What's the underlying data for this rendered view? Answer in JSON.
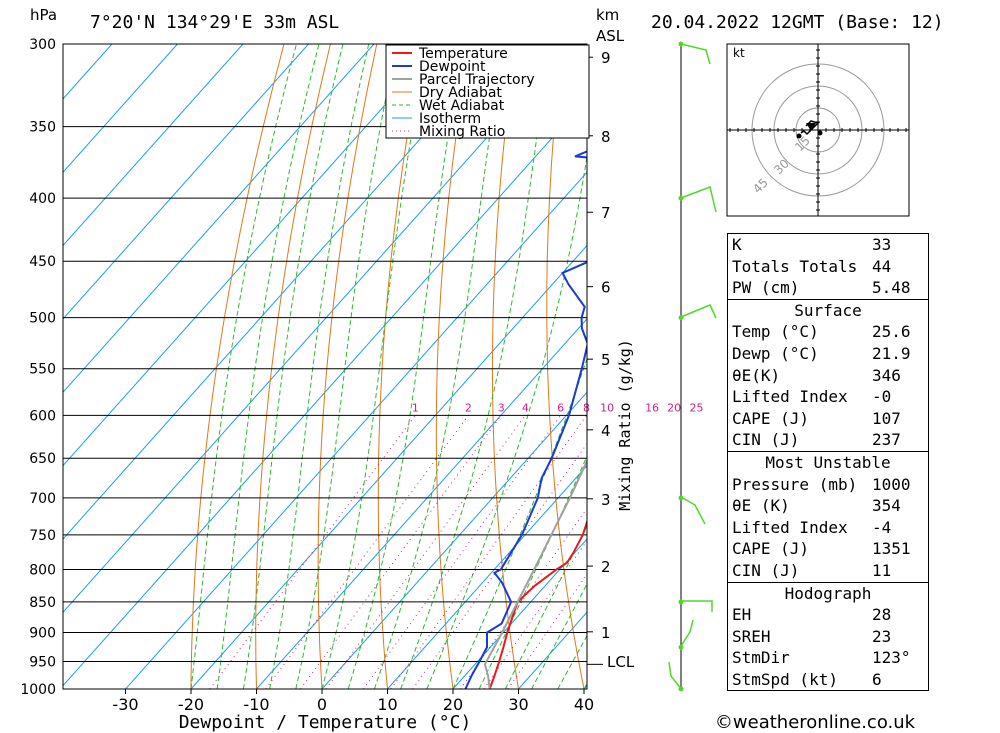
{
  "header": {
    "hpa_label": "hPa",
    "location": "7°20'N  134°29'E  33m  ASL",
    "km_label": "km",
    "asl_label": "ASL",
    "datetime": "20.04.2022  12GMT  (Base: 12)"
  },
  "chart_data": {
    "type": "skew-t",
    "xlabel": "Dewpoint / Temperature (°C)",
    "ylabel": "hPa",
    "mixing_ratio_axis_label": "Mixing Ratio (g/kg)",
    "x_ticks": [
      -30,
      -20,
      -10,
      0,
      10,
      20,
      30,
      40
    ],
    "pressure_levels": [
      300,
      350,
      400,
      450,
      500,
      550,
      600,
      650,
      700,
      750,
      800,
      850,
      900,
      950,
      1000
    ],
    "km_ticks": [
      1,
      2,
      3,
      4,
      5,
      6,
      7,
      8,
      9
    ],
    "lcl_label": "LCL",
    "lcl_pressure": 955,
    "mixing_ratio_labels": [
      "1",
      "2",
      "3",
      "4",
      "6",
      "8",
      "10",
      "16",
      "20",
      "25"
    ],
    "legend": [
      "Temperature",
      "Dewpoint",
      "Parcel Trajectory",
      "Dry Adiabat",
      "Wet Adiabat",
      "Isotherm",
      "Mixing Ratio"
    ],
    "series": [
      {
        "name": "Temperature",
        "color": "#e8191f",
        "points": [
          [
            1000,
            25.6
          ],
          [
            975,
            24.5
          ],
          [
            950,
            23.3
          ],
          [
            925,
            22.0
          ],
          [
            900,
            20.6
          ],
          [
            875,
            19.3
          ],
          [
            850,
            18.0
          ],
          [
            825,
            18.4
          ],
          [
            800,
            19.5
          ],
          [
            790,
            20.2
          ],
          [
            775,
            19.8
          ],
          [
            750,
            18.8
          ],
          [
            700,
            15.6
          ],
          [
            650,
            12.6
          ],
          [
            600,
            8.8
          ],
          [
            575,
            5.9
          ],
          [
            550,
            3.6
          ],
          [
            525,
            1.2
          ],
          [
            500,
            -1.2
          ],
          [
            475,
            -3.3
          ],
          [
            450,
            -6.0
          ],
          [
            425,
            -8.8
          ],
          [
            400,
            -12.2
          ],
          [
            375,
            -16.2
          ],
          [
            350,
            -21.3
          ],
          [
            325,
            -26.2
          ],
          [
            300,
            -31.2
          ]
        ]
      },
      {
        "name": "Dewpoint",
        "color": "#1a3ad4",
        "points": [
          [
            1000,
            21.9
          ],
          [
            975,
            21.0
          ],
          [
            950,
            20.3
          ],
          [
            925,
            19.5
          ],
          [
            900,
            17.5
          ],
          [
            885,
            18.5
          ],
          [
            850,
            17.0
          ],
          [
            820,
            13.0
          ],
          [
            805,
            10.5
          ],
          [
            800,
            11.0
          ],
          [
            750,
            9.5
          ],
          [
            700,
            6.9
          ],
          [
            675,
            4.8
          ],
          [
            650,
            3.6
          ],
          [
            600,
            0.4
          ],
          [
            550,
            -4.0
          ],
          [
            525,
            -6.5
          ],
          [
            510,
            -9.5
          ],
          [
            500,
            -11.0
          ],
          [
            490,
            -12.0
          ],
          [
            470,
            -17.5
          ],
          [
            460,
            -20.0
          ],
          [
            450,
            -17.5
          ],
          [
            440,
            -17.5
          ],
          [
            425,
            -16.2
          ],
          [
            410,
            -18.0
          ],
          [
            400,
            -21.5
          ],
          [
            395,
            -20.0
          ],
          [
            390,
            -24.0
          ],
          [
            383,
            -19.2
          ],
          [
            378,
            -28.0
          ],
          [
            375,
            -20.5
          ],
          [
            370,
            -34.0
          ],
          [
            350,
            -27.0
          ],
          [
            340,
            -24.0
          ],
          [
            325,
            -24.5
          ],
          [
            315,
            -30.0
          ],
          [
            305,
            -27.2
          ],
          [
            300,
            -26.2
          ]
        ]
      },
      {
        "name": "Parcel Trajectory",
        "color": "#a0a0a0",
        "points": [
          [
            1000,
            25.6
          ],
          [
            975,
            23.5
          ],
          [
            955,
            21.5
          ],
          [
            900,
            19.8
          ],
          [
            850,
            18.0
          ],
          [
            800,
            16.1
          ],
          [
            750,
            14.0
          ],
          [
            700,
            11.8
          ],
          [
            650,
            9.2
          ],
          [
            600,
            6.3
          ],
          [
            550,
            2.9
          ],
          [
            500,
            -1.2
          ],
          [
            450,
            -6.1
          ],
          [
            400,
            -12.0
          ],
          [
            350,
            -19.5
          ],
          [
            300,
            -28.6
          ]
        ]
      }
    ]
  },
  "hodograph": {
    "unit_label": "kt",
    "ring_labels": [
      "15",
      "30",
      "45"
    ]
  },
  "indices": {
    "k_label": "K",
    "k_value": "33",
    "tt_label": "Totals Totals",
    "tt_value": "44",
    "pw_label": "PW (cm)",
    "pw_value": "5.48"
  },
  "surface": {
    "title": "Surface",
    "temp_label": "Temp (°C)",
    "temp_value": "25.6",
    "dewp_label": "Dewp (°C)",
    "dewp_value": "21.9",
    "theta_label": "θE(K)",
    "theta_value": "346",
    "li_label": "Lifted Index",
    "li_value": "-0",
    "cape_label": "CAPE (J)",
    "cape_value": "107",
    "cin_label": "CIN (J)",
    "cin_value": "237"
  },
  "most_unstable": {
    "title": "Most Unstable",
    "pressure_label": "Pressure (mb)",
    "pressure_value": "1000",
    "theta_label": "θE (K)",
    "theta_value": "354",
    "li_label": "Lifted Index",
    "li_value": "-4",
    "cape_label": "CAPE (J)",
    "cape_value": "1351",
    "cin_label": "CIN (J)",
    "cin_value": "11"
  },
  "hodograph_params": {
    "title": "Hodograph",
    "eh_label": "EH",
    "eh_value": "28",
    "sreh_label": "SREH",
    "sreh_value": "23",
    "stmdir_label": "StmDir",
    "stmdir_value": "123°",
    "stmspd_label": "StmSpd (kt)",
    "stmspd_value": "6"
  },
  "footer": {
    "copyright": "©weatheronline.co.uk"
  }
}
